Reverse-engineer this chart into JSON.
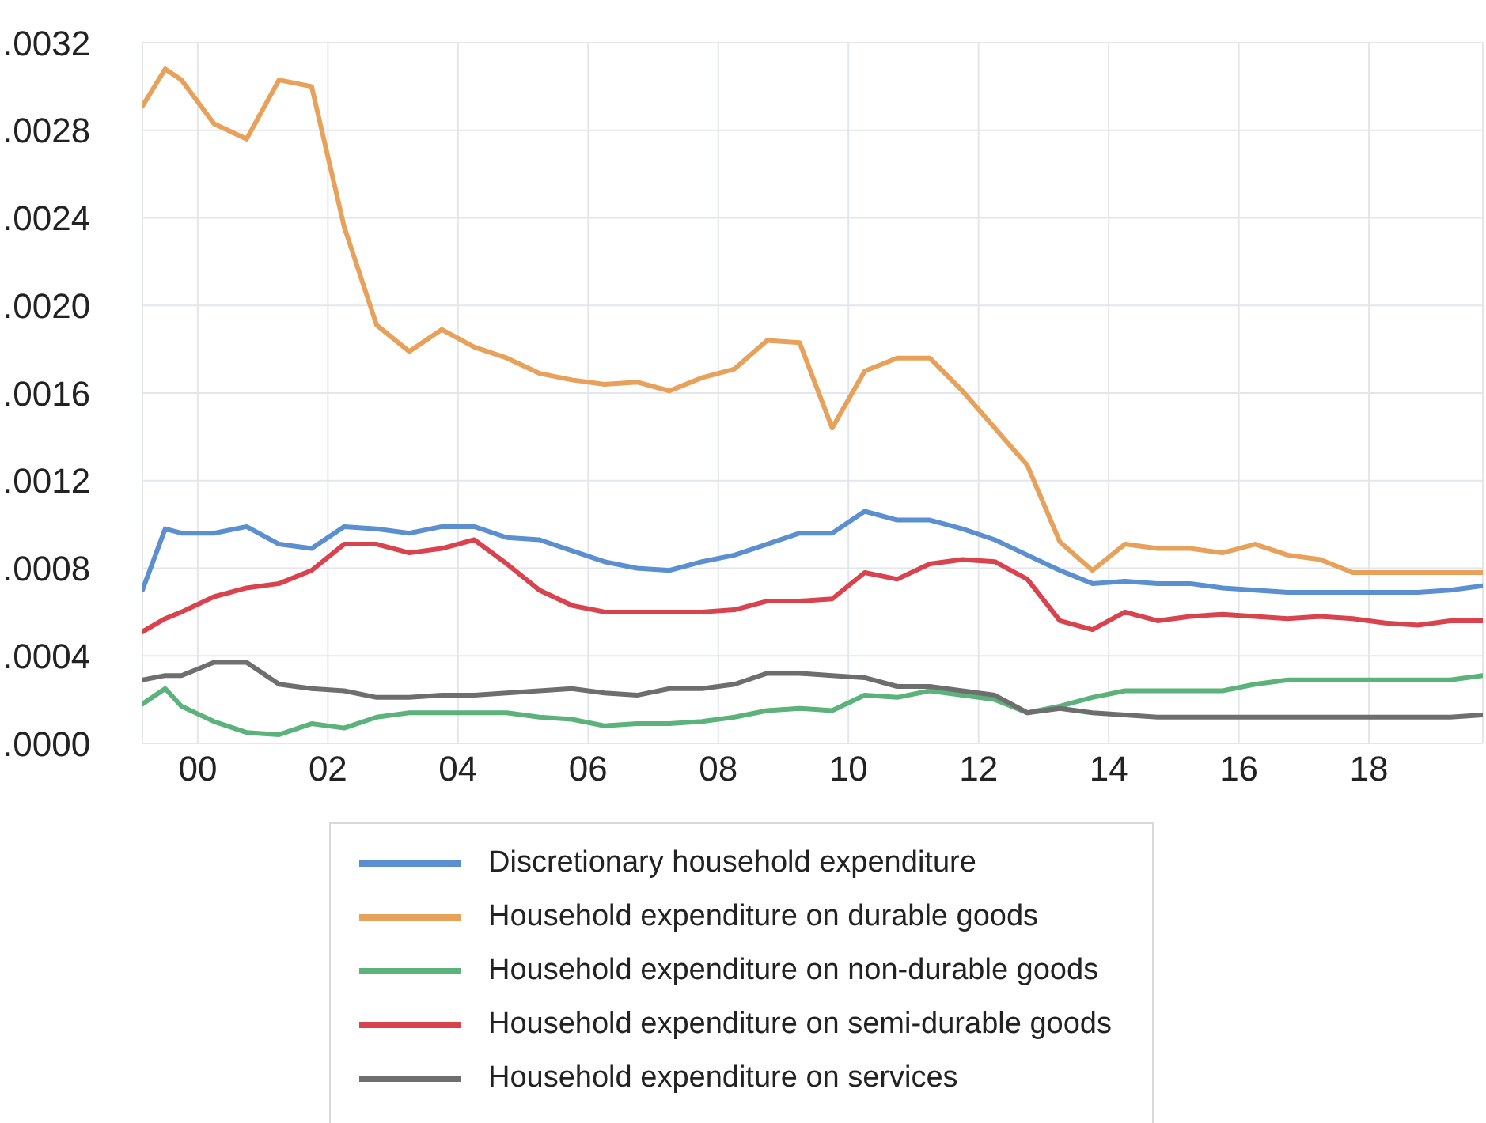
{
  "chart_data": {
    "type": "line",
    "x": [
      1999.15,
      1999.5,
      1999.75,
      2000.25,
      2000.75,
      2001.25,
      2001.75,
      2002.25,
      2002.75,
      2003.25,
      2003.75,
      2004.25,
      2004.75,
      2005.25,
      2005.75,
      2006.25,
      2006.75,
      2007.25,
      2007.75,
      2008.25,
      2008.75,
      2009.25,
      2009.75,
      2010.25,
      2010.75,
      2011.25,
      2011.75,
      2012.25,
      2012.75,
      2013.25,
      2013.75,
      2014.25,
      2014.75,
      2015.25,
      2015.75,
      2016.25,
      2016.75,
      2017.25,
      2017.75,
      2018.25,
      2018.75,
      2019.25,
      2019.75
    ],
    "series": [
      {
        "name": "Discretionary household expenditure",
        "color": "#5b8fd0",
        "values": [
          0.0007,
          0.00098,
          0.00096,
          0.00096,
          0.00099,
          0.00091,
          0.00089,
          0.00099,
          0.00098,
          0.00096,
          0.00099,
          0.00099,
          0.00094,
          0.00093,
          0.00088,
          0.00083,
          0.0008,
          0.00079,
          0.00083,
          0.00086,
          0.00091,
          0.00096,
          0.00096,
          0.00106,
          0.00102,
          0.00102,
          0.00098,
          0.00093,
          0.00086,
          0.00079,
          0.00073,
          0.00074,
          0.00073,
          0.00073,
          0.00071,
          0.0007,
          0.00069,
          0.00069,
          0.00069,
          0.00069,
          0.00069,
          0.0007,
          0.00072
        ]
      },
      {
        "name": "Household expenditure on durable goods",
        "color": "#e8a15a",
        "values": [
          0.00291,
          0.00308,
          0.00303,
          0.00283,
          0.00276,
          0.00303,
          0.003,
          0.00236,
          0.00191,
          0.00179,
          0.00189,
          0.00181,
          0.00176,
          0.00169,
          0.00166,
          0.00164,
          0.00165,
          0.00161,
          0.00167,
          0.00171,
          0.00184,
          0.00183,
          0.00144,
          0.0017,
          0.00176,
          0.00176,
          0.00161,
          0.00144,
          0.00127,
          0.00092,
          0.00079,
          0.00091,
          0.00089,
          0.00089,
          0.00087,
          0.00091,
          0.00086,
          0.00084,
          0.00078,
          0.00078,
          0.00078,
          0.00078,
          0.00078
        ]
      },
      {
        "name": "Household expenditure on non-durable goods",
        "color": "#5bb27a",
        "values": [
          0.00018,
          0.00025,
          0.00017,
          0.0001,
          5e-05,
          4e-05,
          9e-05,
          7e-05,
          0.00012,
          0.00014,
          0.00014,
          0.00014,
          0.00014,
          0.00012,
          0.00011,
          8e-05,
          9e-05,
          9e-05,
          0.0001,
          0.00012,
          0.00015,
          0.00016,
          0.00015,
          0.00022,
          0.00021,
          0.00024,
          0.00022,
          0.0002,
          0.00014,
          0.00017,
          0.00021,
          0.00024,
          0.00024,
          0.00024,
          0.00024,
          0.00027,
          0.00029,
          0.00029,
          0.00029,
          0.00029,
          0.00029,
          0.00029,
          0.00031
        ]
      },
      {
        "name": "Household expenditure on semi-durable goods",
        "color": "#d9434d",
        "values": [
          0.00051,
          0.00057,
          0.0006,
          0.00067,
          0.00071,
          0.00073,
          0.00079,
          0.00091,
          0.00091,
          0.00087,
          0.00089,
          0.00093,
          0.00082,
          0.0007,
          0.00063,
          0.0006,
          0.0006,
          0.0006,
          0.0006,
          0.00061,
          0.00065,
          0.00065,
          0.00066,
          0.00078,
          0.00075,
          0.00082,
          0.00084,
          0.00083,
          0.00075,
          0.00056,
          0.00052,
          0.0006,
          0.00056,
          0.00058,
          0.00059,
          0.00058,
          0.00057,
          0.00058,
          0.00057,
          0.00055,
          0.00054,
          0.00056,
          0.00056
        ]
      },
      {
        "name": "Household expenditure on services",
        "color": "#6e6e6e",
        "values": [
          0.00029,
          0.00031,
          0.00031,
          0.00037,
          0.00037,
          0.00027,
          0.00025,
          0.00024,
          0.00021,
          0.00021,
          0.00022,
          0.00022,
          0.00023,
          0.00024,
          0.00025,
          0.00023,
          0.00022,
          0.00025,
          0.00025,
          0.00027,
          0.00032,
          0.00032,
          0.00031,
          0.0003,
          0.00026,
          0.00026,
          0.00024,
          0.00022,
          0.00014,
          0.00016,
          0.00014,
          0.00013,
          0.00012,
          0.00012,
          0.00012,
          0.00012,
          0.00012,
          0.00012,
          0.00012,
          0.00012,
          0.00012,
          0.00012,
          0.00013
        ]
      }
    ],
    "xlim": [
      1999.15,
      2019.75
    ],
    "xticks": [
      {
        "value": 2000,
        "label": "00"
      },
      {
        "value": 2002,
        "label": "02"
      },
      {
        "value": 2004,
        "label": "04"
      },
      {
        "value": 2006,
        "label": "06"
      },
      {
        "value": 2008,
        "label": "08"
      },
      {
        "value": 2010,
        "label": "10"
      },
      {
        "value": 2012,
        "label": "12"
      },
      {
        "value": 2014,
        "label": "14"
      },
      {
        "value": 2016,
        "label": "16"
      },
      {
        "value": 2018,
        "label": "18"
      }
    ],
    "ylim": [
      0,
      0.0032
    ],
    "yticks": [
      {
        "value": 0,
        "label": ".0000"
      },
      {
        "value": 0.0004,
        "label": ".0004"
      },
      {
        "value": 0.0008,
        "label": ".0008"
      },
      {
        "value": 0.0012,
        "label": ".0012"
      },
      {
        "value": 0.0016,
        "label": ".0016"
      },
      {
        "value": 0.002,
        "label": ".0020"
      },
      {
        "value": 0.0024,
        "label": ".0024"
      },
      {
        "value": 0.0028,
        "label": ".0028"
      },
      {
        "value": 0.0032,
        "label": ".0032"
      }
    ],
    "grid": true,
    "legend": "bottom",
    "marker": "none",
    "line_style": "solid"
  }
}
